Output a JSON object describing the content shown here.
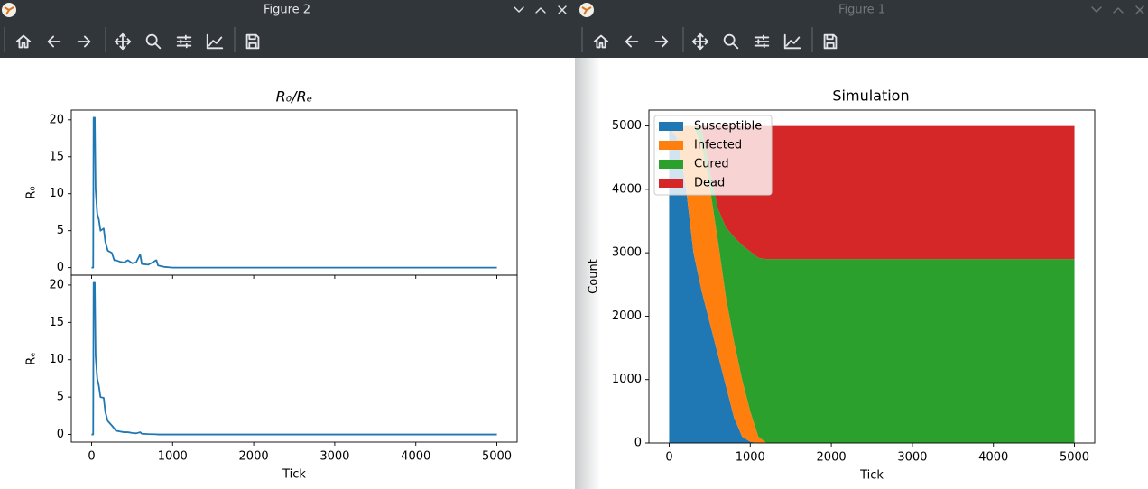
{
  "windows": [
    {
      "title": "Figure 2",
      "chart_data": [
        {
          "type": "line",
          "title": "R₀/Rₑ",
          "ylabel": "R₀",
          "color": "#1f77b4",
          "x": [
            0,
            20,
            25,
            40,
            50,
            70,
            90,
            110,
            150,
            170,
            200,
            250,
            280,
            300,
            350,
            400,
            450,
            500,
            550,
            600,
            620,
            700,
            800,
            820,
            900,
            1000,
            5000
          ],
          "values": [
            0,
            0,
            20.3,
            20.3,
            10.6,
            7.3,
            6.5,
            5.0,
            5.3,
            3.5,
            2.3,
            2.0,
            1.0,
            1.0,
            0.8,
            0.7,
            1.0,
            0.6,
            0.7,
            1.8,
            0.5,
            0.4,
            1.0,
            0.3,
            0.1,
            0,
            0
          ],
          "xlim": [
            -250,
            5250
          ],
          "xticks": [
            0,
            1000,
            2000,
            3000,
            4000,
            5000
          ],
          "ylim": [
            -1.02,
            21.32
          ],
          "yticks": [
            0,
            5,
            10,
            15,
            20
          ],
          "grid": false
        },
        {
          "type": "line",
          "ylabel": "Rₑ",
          "xlabel": "Tick",
          "color": "#1f77b4",
          "x": [
            0,
            20,
            25,
            40,
            50,
            70,
            90,
            110,
            150,
            170,
            200,
            250,
            280,
            300,
            350,
            400,
            450,
            500,
            550,
            600,
            620,
            700,
            800,
            820,
            900,
            1000,
            5000
          ],
          "values": [
            0,
            0,
            20.3,
            20.3,
            10.5,
            7.5,
            6.5,
            5.0,
            4.9,
            3.0,
            1.8,
            1.2,
            0.8,
            0.5,
            0.4,
            0.3,
            0.3,
            0.2,
            0.15,
            0.3,
            0.1,
            0.05,
            0.02,
            0,
            0,
            0,
            0
          ],
          "xlim": [
            -250,
            5250
          ],
          "xticks": [
            0,
            1000,
            2000,
            3000,
            4000,
            5000
          ],
          "ylim": [
            -1.02,
            21.32
          ],
          "yticks": [
            0,
            5,
            10,
            15,
            20
          ],
          "grid": false
        }
      ]
    },
    {
      "title": "Figure 1",
      "chart_data": {
        "type": "stackedarea",
        "title": "Simulation",
        "xlabel": "Tick",
        "ylabel": "Count",
        "x": [
          0,
          100,
          200,
          300,
          400,
          500,
          600,
          700,
          800,
          900,
          1000,
          1100,
          1200,
          1500,
          2000,
          5000
        ],
        "series": [
          {
            "name": "Susceptible",
            "color": "#1f77b4",
            "values": [
              4990,
              4800,
              4100,
              3000,
              2400,
              1900,
              1400,
              900,
              400,
              100,
              20,
              0,
              0,
              0,
              0,
              0
            ]
          },
          {
            "name": "Infected",
            "color": "#ff7f0e",
            "values": [
              10,
              200,
              890,
              1990,
              2300,
              2150,
              1800,
              1400,
              1200,
              900,
              480,
              100,
              0,
              0,
              0,
              0
            ]
          },
          {
            "name": "Cured",
            "color": "#2ca02c",
            "values": [
              0,
              0,
              10,
              10,
              250,
              250,
              500,
              1100,
              1650,
              2120,
              2520,
              2820,
              2900,
              2900,
              2900,
              2900
            ]
          },
          {
            "name": "Dead",
            "color": "#d62728",
            "values": [
              0,
              0,
              0,
              0,
              50,
              700,
              1300,
              1600,
              1750,
              1880,
              1980,
              2080,
              2100,
              2100,
              2100,
              2100
            ]
          }
        ],
        "xlim": [
          -250,
          5250
        ],
        "xticks": [
          0,
          1000,
          2000,
          3000,
          4000,
          5000
        ],
        "ylim": [
          0,
          5250
        ],
        "yticks": [
          0,
          1000,
          2000,
          3000,
          4000,
          5000
        ],
        "legend": "upper left",
        "grid": false
      }
    }
  ]
}
